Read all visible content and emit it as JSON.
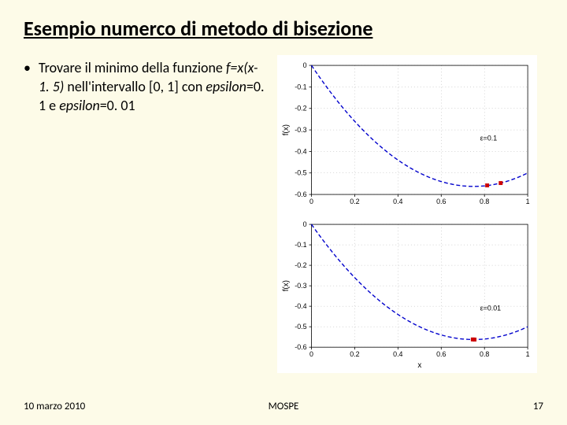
{
  "title": "Esempio numerco di metodo di bisezione",
  "bullet": {
    "prefix": "Trovare il minimo della funzione ",
    "func": "f=x(x-1. 5)",
    "mid": " nell'intervallo [0, 1] con ",
    "eps1_name": "epsilon",
    "eps1_val": "=0. 1 e ",
    "eps2_name": "epsilon",
    "eps2_val": "=0. 01"
  },
  "footer": {
    "date": "10 marzo 2010",
    "center": "MOSPE",
    "page": "17"
  },
  "chart1": {
    "xlim": [
      0,
      1
    ],
    "ylim": [
      -0.6,
      0
    ],
    "xticks": [
      0,
      0.2,
      0.4,
      0.6,
      0.8,
      1
    ],
    "yticks": [
      -0.6,
      -0.5,
      -0.4,
      -0.3,
      -0.2,
      -0.1,
      0
    ],
    "ylabel": "f(x)",
    "eps_text": "ε=0.1",
    "eps_pos": [
      0.78,
      -0.35
    ],
    "markers": [
      [
        0.8125,
        -0.558
      ],
      [
        0.875,
        -0.547
      ]
    ],
    "curve_color": "#0000cc",
    "marker_color": "#cc0000",
    "background": "#ffffff"
  },
  "chart2": {
    "xlim": [
      0,
      1
    ],
    "ylim": [
      -0.6,
      0
    ],
    "xticks": [
      0,
      0.2,
      0.4,
      0.6,
      0.8,
      1
    ],
    "yticks": [
      -0.6,
      -0.5,
      -0.4,
      -0.3,
      -0.2,
      -0.1,
      0
    ],
    "xlabel": "x",
    "ylabel": "f(x)",
    "eps_text": "ε=0.01",
    "eps_pos": [
      0.78,
      -0.42
    ],
    "markers": [
      [
        0.746,
        -0.562
      ],
      [
        0.754,
        -0.5625
      ]
    ],
    "curve_color": "#0000cc",
    "marker_color": "#cc0000",
    "background": "#ffffff"
  }
}
